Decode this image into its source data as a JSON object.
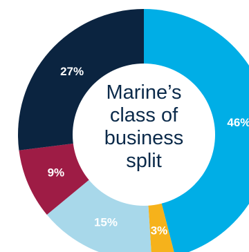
{
  "chart_data": {
    "type": "pie",
    "title_lines": [
      "Marine’s",
      "class of",
      "business",
      "split"
    ],
    "donut": true,
    "slices": [
      {
        "label": "46%",
        "value": 46,
        "color": "#00aee6"
      },
      {
        "label": "3%",
        "value": 3,
        "color": "#f6b21b"
      },
      {
        "label": "15%",
        "value": 15,
        "color": "#a8d8ea"
      },
      {
        "label": "9%",
        "value": 9,
        "color": "#9e1c45"
      },
      {
        "label": "27%",
        "value": 27,
        "color": "#0b2440"
      }
    ]
  }
}
